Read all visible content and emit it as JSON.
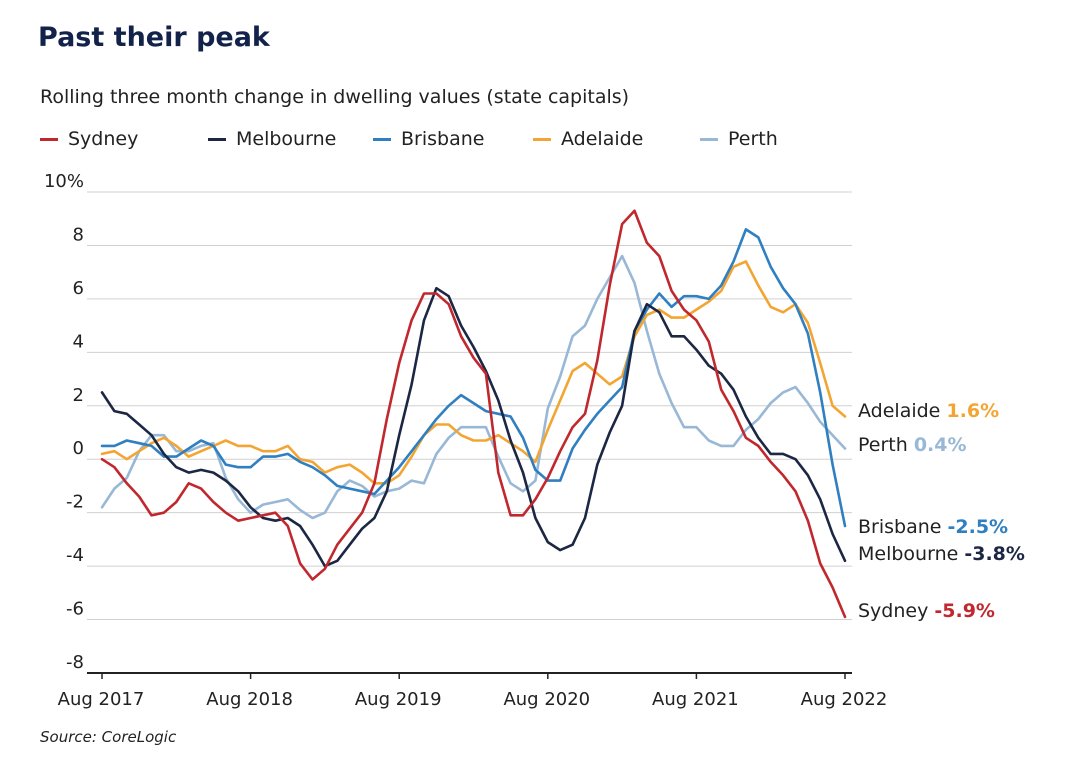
{
  "colors": {
    "title": "#12224a",
    "grid": "#d0d0d0",
    "axis": "#222222"
  },
  "chart_data": {
    "type": "line",
    "title": "Past their peak",
    "subtitle": "Rolling three month change in dwelling values (state capitals)",
    "ylabel": "",
    "xlabel": "",
    "ylim": [
      -8,
      10
    ],
    "xlim": [
      -1,
      60
    ],
    "y_ticks": [
      {
        "value": 10,
        "label": "10%"
      },
      {
        "value": 8,
        "label": "8"
      },
      {
        "value": 6,
        "label": "6"
      },
      {
        "value": 4,
        "label": "4"
      },
      {
        "value": 2,
        "label": "2"
      },
      {
        "value": 0,
        "label": "0"
      },
      {
        "value": -2,
        "label": "-2"
      },
      {
        "value": -4,
        "label": "-4"
      },
      {
        "value": -6,
        "label": "-6"
      },
      {
        "value": -8,
        "label": "-8"
      }
    ],
    "x_ticks": [
      {
        "value": 0,
        "label": "Aug 2017"
      },
      {
        "value": 12,
        "label": "Aug 2018"
      },
      {
        "value": 24,
        "label": "Aug 2019"
      },
      {
        "value": 36,
        "label": "Aug 2020"
      },
      {
        "value": 48,
        "label": "Aug 2021"
      },
      {
        "value": 60,
        "label": "Aug 2022"
      }
    ],
    "legend_position": "top",
    "source": "Source: CoreLogic",
    "series": [
      {
        "name": "Sydney",
        "color": "#c0282e",
        "end_value": "-5.9%",
        "values": [
          0.0,
          -0.3,
          -0.9,
          -1.4,
          -2.1,
          -2.0,
          -1.6,
          -0.9,
          -1.1,
          -1.6,
          -2.0,
          -2.3,
          -2.2,
          -2.1,
          -2.0,
          -2.5,
          -3.9,
          -4.5,
          -4.1,
          -3.2,
          -2.6,
          -2.0,
          -0.9,
          1.5,
          3.6,
          5.2,
          6.2,
          6.2,
          5.8,
          4.6,
          3.8,
          3.2,
          -0.5,
          -2.1,
          -2.1,
          -1.5,
          -0.7,
          0.3,
          1.2,
          1.7,
          3.7,
          6.5,
          8.8,
          9.3,
          8.1,
          7.6,
          6.3,
          5.6,
          5.2,
          4.4,
          2.6,
          1.8,
          0.8,
          0.5,
          -0.1,
          -0.6,
          -1.2,
          -2.3,
          -3.9,
          -4.8,
          -5.9
        ]
      },
      {
        "name": "Melbourne",
        "color": "#1c2744",
        "end_value": "-3.8%",
        "values": [
          2.5,
          1.8,
          1.7,
          1.3,
          0.9,
          0.2,
          -0.3,
          -0.5,
          -0.4,
          -0.5,
          -0.8,
          -1.2,
          -1.8,
          -2.2,
          -2.3,
          -2.2,
          -2.5,
          -3.2,
          -4.0,
          -3.8,
          -3.2,
          -2.6,
          -2.2,
          -1.2,
          0.9,
          2.8,
          5.2,
          6.4,
          6.1,
          5.0,
          4.2,
          3.3,
          2.2,
          0.7,
          -0.5,
          -2.2,
          -3.1,
          -3.4,
          -3.2,
          -2.2,
          -0.2,
          1.0,
          2.0,
          4.8,
          5.8,
          5.5,
          4.6,
          4.6,
          4.1,
          3.5,
          3.2,
          2.6,
          1.6,
          0.8,
          0.2,
          0.2,
          0.0,
          -0.6,
          -1.5,
          -2.8,
          -3.8
        ]
      },
      {
        "name": "Brisbane",
        "color": "#2f7fc1",
        "end_value": "-2.5%",
        "values": [
          0.5,
          0.5,
          0.7,
          0.6,
          0.5,
          0.1,
          0.1,
          0.4,
          0.7,
          0.5,
          -0.2,
          -0.3,
          -0.3,
          0.1,
          0.1,
          0.2,
          -0.1,
          -0.3,
          -0.6,
          -1.0,
          -1.1,
          -1.2,
          -1.3,
          -0.8,
          -0.3,
          0.3,
          0.9,
          1.5,
          2.0,
          2.4,
          2.1,
          1.8,
          1.7,
          1.6,
          0.8,
          -0.4,
          -0.8,
          -0.8,
          0.4,
          1.1,
          1.7,
          2.2,
          2.7,
          4.8,
          5.6,
          6.2,
          5.7,
          6.1,
          6.1,
          6.0,
          6.5,
          7.4,
          8.6,
          8.3,
          7.2,
          6.4,
          5.8,
          4.7,
          2.5,
          -0.2,
          -2.5
        ]
      },
      {
        "name": "Adelaide",
        "color": "#f3a533",
        "end_value": "1.6%",
        "values": [
          0.2,
          0.3,
          0.0,
          0.3,
          0.6,
          0.8,
          0.5,
          0.1,
          0.3,
          0.5,
          0.7,
          0.5,
          0.5,
          0.3,
          0.3,
          0.5,
          0.0,
          -0.1,
          -0.5,
          -0.3,
          -0.2,
          -0.5,
          -0.9,
          -0.9,
          -0.6,
          0.1,
          0.9,
          1.3,
          1.3,
          0.9,
          0.7,
          0.7,
          0.9,
          0.6,
          0.3,
          -0.1,
          1.1,
          2.2,
          3.3,
          3.6,
          3.2,
          2.8,
          3.1,
          4.6,
          5.4,
          5.6,
          5.3,
          5.3,
          5.6,
          5.9,
          6.3,
          7.2,
          7.4,
          6.5,
          5.7,
          5.5,
          5.8,
          5.1,
          3.6,
          2.0,
          1.6
        ]
      },
      {
        "name": "Perth",
        "color": "#98b8d6",
        "end_value": "0.4%",
        "values": [
          -1.8,
          -1.1,
          -0.7,
          0.3,
          0.9,
          0.9,
          0.3,
          0.3,
          0.5,
          0.6,
          -0.7,
          -1.5,
          -2.0,
          -1.7,
          -1.6,
          -1.5,
          -1.9,
          -2.2,
          -2.0,
          -1.2,
          -0.8,
          -1.0,
          -1.4,
          -1.2,
          -1.1,
          -0.8,
          -0.9,
          0.2,
          0.8,
          1.2,
          1.2,
          1.2,
          0.1,
          -0.9,
          -1.2,
          -0.8,
          1.9,
          3.1,
          4.6,
          5.0,
          6.0,
          6.8,
          7.6,
          6.6,
          4.8,
          3.2,
          2.1,
          1.2,
          1.2,
          0.7,
          0.5,
          0.5,
          1.1,
          1.5,
          2.1,
          2.5,
          2.7,
          2.1,
          1.4,
          0.9,
          0.4
        ]
      }
    ],
    "end_labels": [
      {
        "series": "Adelaide",
        "name": "Adelaide",
        "value": "1.6%"
      },
      {
        "series": "Perth",
        "name": "Perth",
        "value": "0.4%"
      },
      {
        "series": "Brisbane",
        "name": "Brisbane",
        "value": "-2.5%"
      },
      {
        "series": "Melbourne",
        "name": "Melbourne",
        "value": "-3.8%"
      },
      {
        "series": "Sydney",
        "name": "Sydney",
        "value": "-5.9%"
      }
    ]
  }
}
